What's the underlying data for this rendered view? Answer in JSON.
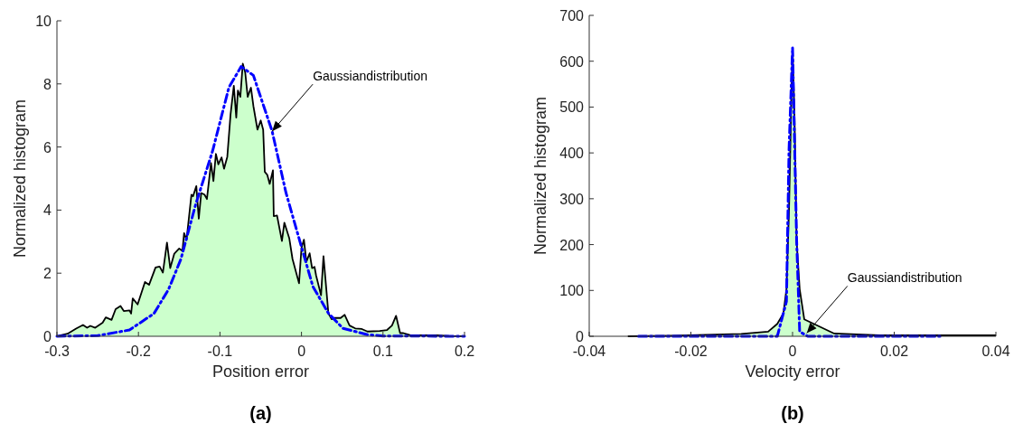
{
  "chart_data": [
    {
      "type": "area",
      "title": "(a)",
      "xlabel": "Position error",
      "ylabel": "Normalized histogram",
      "xlim": [
        -0.3,
        0.2
      ],
      "xticks": [
        -0.3,
        -0.2,
        -0.1,
        0,
        0.1,
        0.2
      ],
      "ylim": [
        0,
        10
      ],
      "yticks": [
        0,
        2,
        4,
        6,
        8,
        10
      ],
      "grid": false,
      "annotations": [
        {
          "text": "Gaussiandistribution",
          "x": -0.036,
          "y": 6.5
        }
      ],
      "series": [
        {
          "color": "#ccffcc",
          "x": [
            -0.3,
            -0.287,
            -0.276,
            -0.268,
            -0.263,
            -0.259,
            -0.253,
            -0.244,
            -0.24,
            -0.233,
            -0.228,
            -0.222,
            -0.218,
            -0.211,
            -0.209,
            -0.207,
            -0.201,
            -0.192,
            -0.187,
            -0.179,
            -0.174,
            -0.17,
            -0.165,
            -0.161,
            -0.156,
            -0.15,
            -0.146,
            -0.144,
            -0.141,
            -0.135,
            -0.133,
            -0.129,
            -0.126,
            -0.123,
            -0.119,
            -0.116,
            -0.111,
            -0.108,
            -0.105,
            -0.102,
            -0.098,
            -0.095,
            -0.091,
            -0.087,
            -0.083,
            -0.08,
            -0.078,
            -0.075,
            -0.072,
            -0.069,
            -0.066,
            -0.062,
            -0.059,
            -0.054,
            -0.05,
            -0.047,
            -0.045,
            -0.042,
            -0.039,
            -0.035,
            -0.034,
            -0.03,
            -0.024,
            -0.021,
            -0.015,
            -0.011,
            -0.003,
            0,
            0.003,
            0.006,
            0.01,
            0.013,
            0.016,
            0.018,
            0.024,
            0.027,
            0.033,
            0.037,
            0.04,
            0.048,
            0.053,
            0.059,
            0.066,
            0.074,
            0.081,
            0.096,
            0.105,
            0.111,
            0.116,
            0.121,
            0.125,
            0.133,
            0.148,
            0.166,
            0.181,
            0.2
          ],
          "values": [
            0,
            0.08,
            0.25,
            0.36,
            0.27,
            0.33,
            0.27,
            0.43,
            0.6,
            0.52,
            0.86,
            0.96,
            0.8,
            0.82,
            0.72,
            1.2,
            1.01,
            1.72,
            1.63,
            2.18,
            2.21,
            2.02,
            2.97,
            2.16,
            2.62,
            2.78,
            2.71,
            3.27,
            3.06,
            4.49,
            4.44,
            4.76,
            3.73,
            4.54,
            4.49,
            4.35,
            5.49,
            4.92,
            5.78,
            5.45,
            5.67,
            5.31,
            5.69,
            7.03,
            7.94,
            6.93,
            7.79,
            7.59,
            8.64,
            8.36,
            7.59,
            7.88,
            7.3,
            6.55,
            6.84,
            6.55,
            5.21,
            5.12,
            4.83,
            5.26,
            3.81,
            3.83,
            3.02,
            3.6,
            3.11,
            2.45,
            1.68,
            2.8,
            3.06,
            2.36,
            2.63,
            2.16,
            2.2,
            1.92,
            1.3,
            2.54,
            0.73,
            0.54,
            0.58,
            0.58,
            0.68,
            0.34,
            0.25,
            0.23,
            0.15,
            0.17,
            0.2,
            0.34,
            0.65,
            0.1,
            0.1,
            0.04,
            0.03,
            0.03,
            0.01,
            0
          ]
        },
        {
          "type": "line",
          "color": "#0000ff",
          "line_style": "dashed",
          "x": [
            -0.3,
            -0.25,
            -0.211,
            -0.181,
            -0.163,
            -0.148,
            -0.13,
            -0.109,
            -0.089,
            -0.074,
            -0.059,
            -0.036,
            -0.019,
            0,
            0.014,
            0.033,
            0.051,
            0.081,
            0.1,
            0.2
          ],
          "values": [
            0,
            0.02,
            0.2,
            0.72,
            1.49,
            2.44,
            4.16,
            5.88,
            7.89,
            8.55,
            8.27,
            6.5,
            4.55,
            2.83,
            1.58,
            0.73,
            0.25,
            0.05,
            0.01,
            0
          ]
        }
      ]
    },
    {
      "type": "area",
      "title": "(b)",
      "xlabel": "Velocity error",
      "ylabel": "Normalized histogram",
      "xlim": [
        -0.04,
        0.04
      ],
      "xticks": [
        -0.04,
        -0.02,
        0,
        0.02,
        0.04
      ],
      "ylim": [
        0,
        700
      ],
      "yticks": [
        0,
        100,
        200,
        300,
        400,
        500,
        600,
        700
      ],
      "grid": false,
      "annotations": [
        {
          "text": "Gaussiandistribution",
          "x": 0.0028,
          "y": 7
        }
      ],
      "series": [
        {
          "color": "#ccffcc",
          "x": [
            -0.0324,
            -0.0244,
            -0.0101,
            -0.0048,
            -0.003,
            -0.0018,
            -0.0012,
            -0.0007,
            -0.0002,
            0,
            0.0004,
            0.0008,
            0.0014,
            0.0023,
            0.0082,
            0.0171,
            0.04
          ],
          "values": [
            0,
            1,
            5,
            10,
            27,
            50,
            103,
            274,
            536,
            628,
            471,
            208,
            103,
            37,
            6,
            2,
            2
          ]
        },
        {
          "type": "line",
          "color": "#0000ff",
          "line_style": "dashed",
          "x": [
            -0.0303,
            -0.003,
            -0.0012,
            -0.0007,
            0,
            0.0008,
            0.0014,
            0.003,
            0.029
          ],
          "values": [
            0,
            0,
            76,
            405,
            630,
            210,
            10,
            0,
            0
          ]
        }
      ]
    }
  ]
}
